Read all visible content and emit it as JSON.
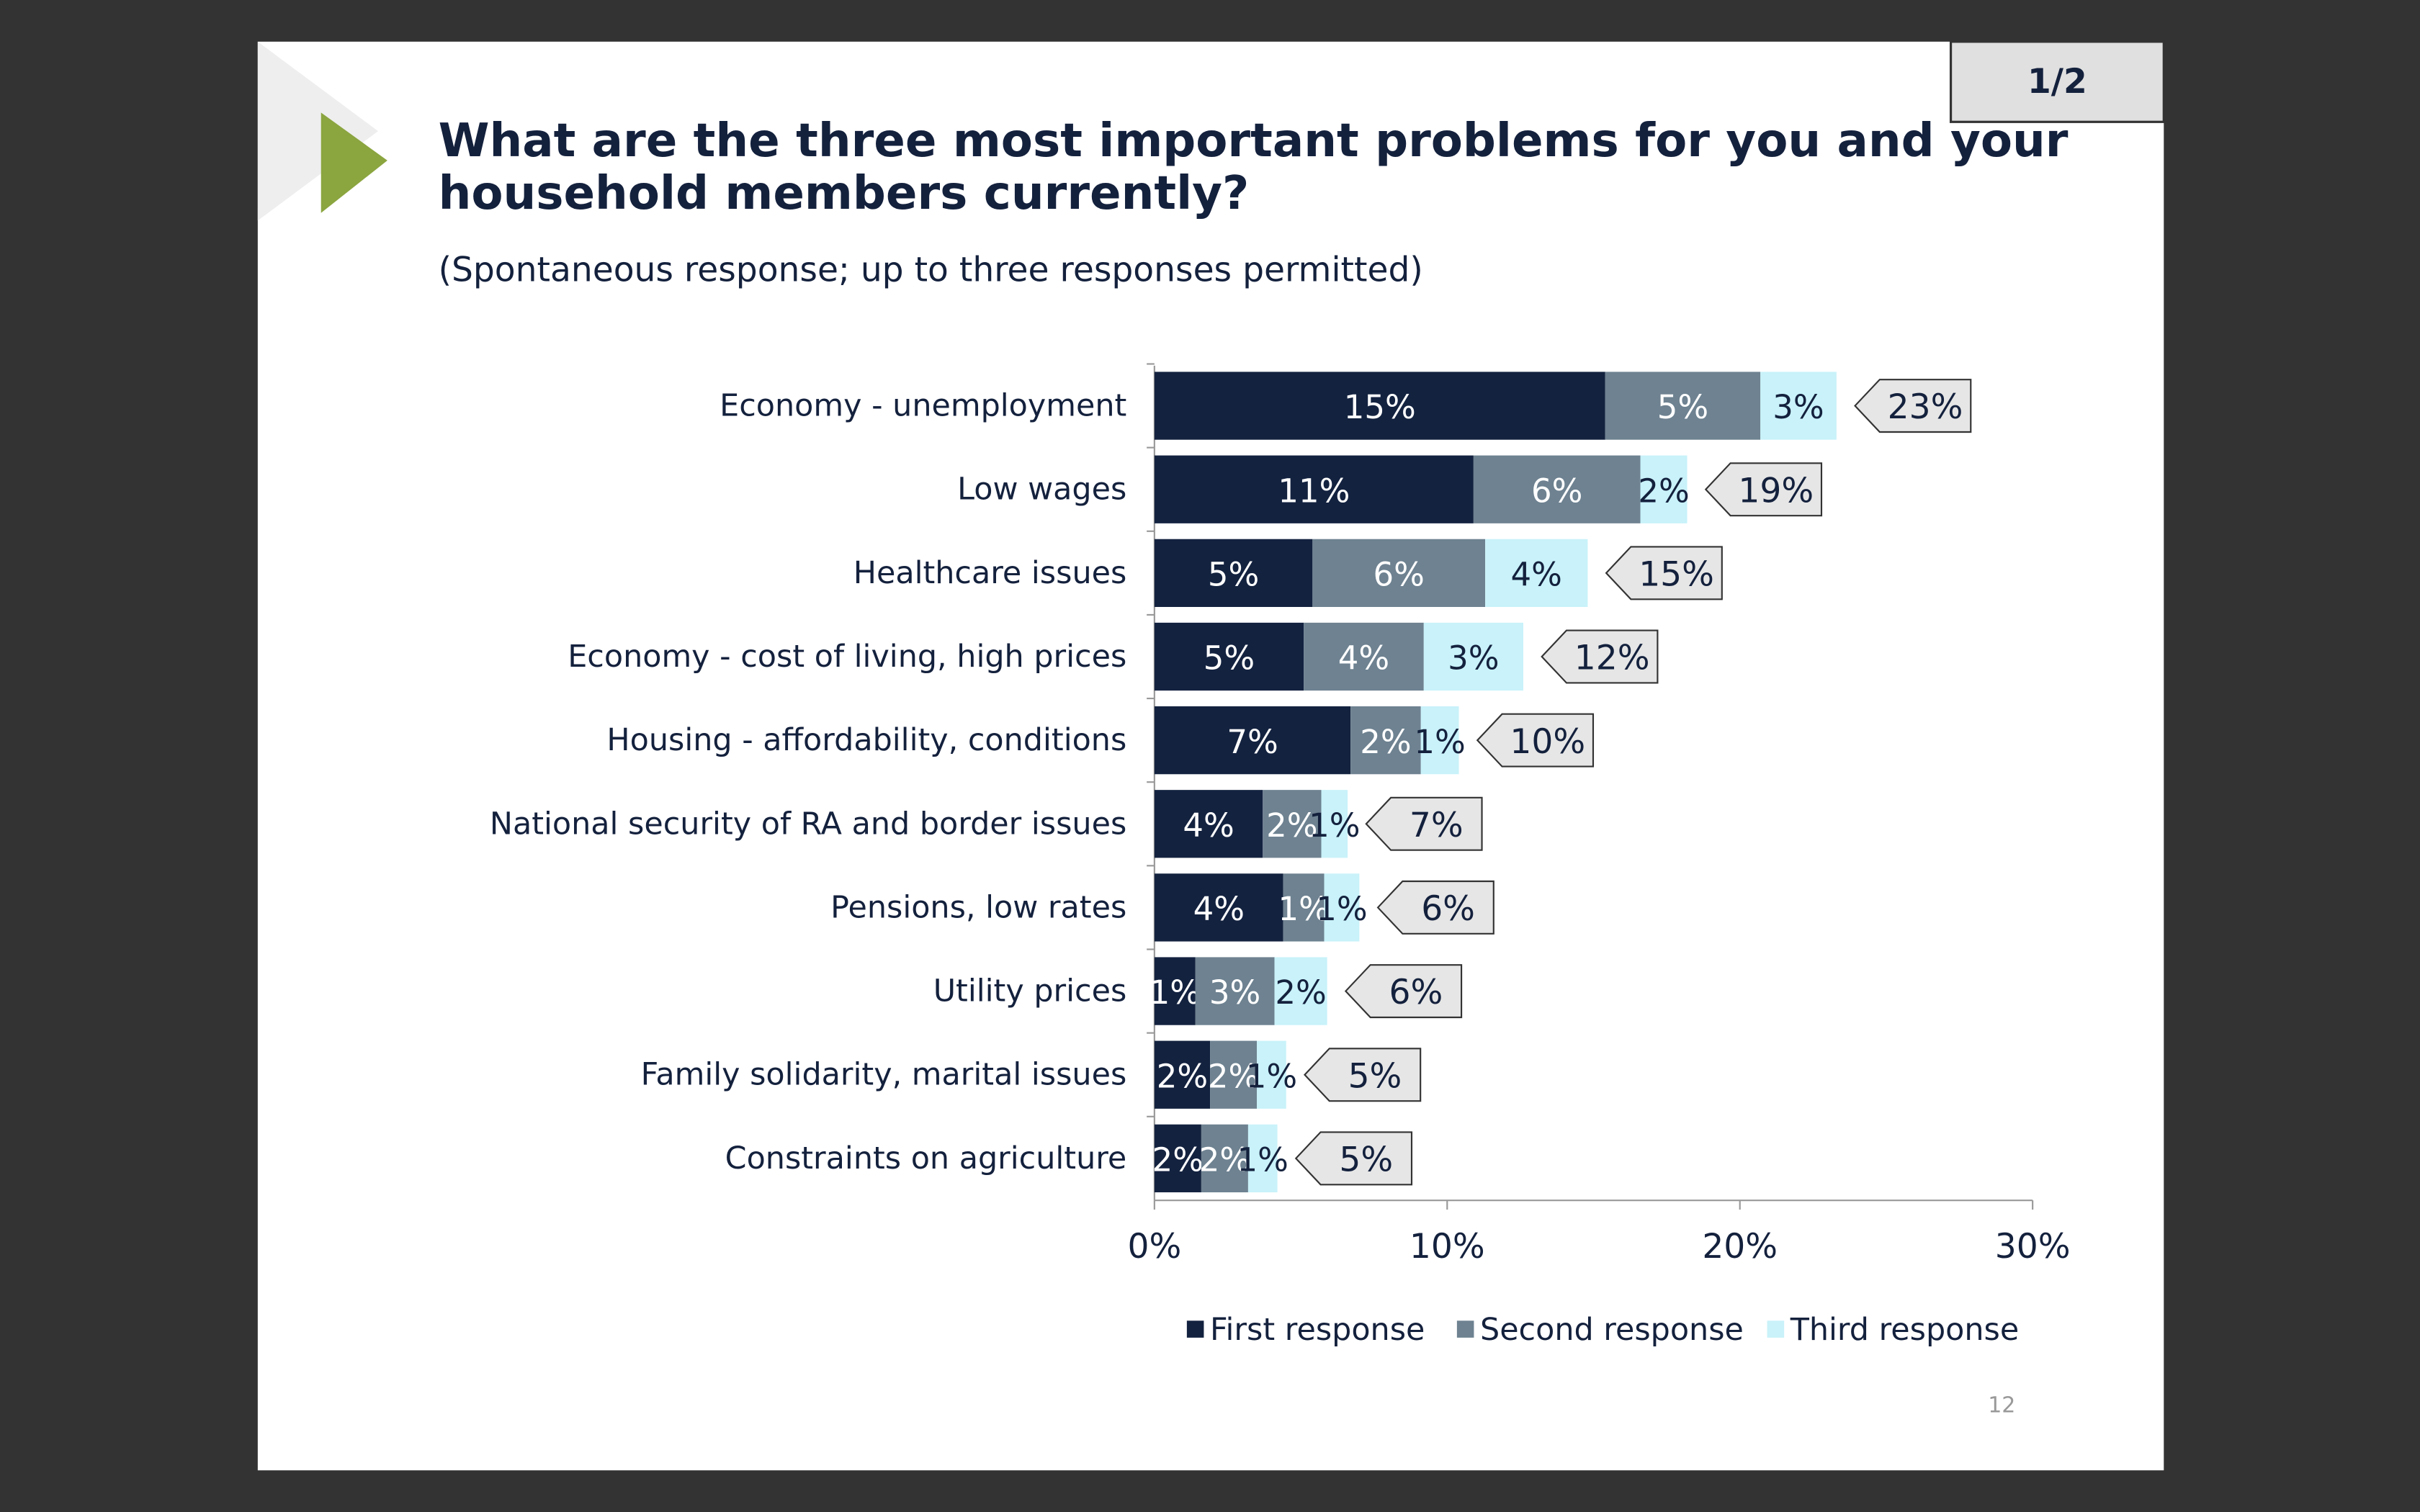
{
  "header": {
    "page": "1/2"
  },
  "footer": {
    "slide_number": "12"
  },
  "chart_data": {
    "type": "stacked-bar-horizontal",
    "title": "What are the three most important problems for you and your household members currently?",
    "subtitle": "(Spontaneous response; up to three responses permitted)",
    "categories": [
      "Economy - unemployment",
      "Low wages",
      "Healthcare issues",
      "Economy - cost of living, high prices",
      "Housing - affordability, conditions",
      "National security of RA and border issues",
      "Pensions, low rates",
      "Utility prices",
      "Family solidarity, marital issues",
      "Constraints on agriculture"
    ],
    "series": [
      {
        "name": "First response",
        "color": "#13223f",
        "values": [
          15.4,
          10.9,
          5.4,
          5.1,
          6.7,
          3.7,
          4.4,
          1.4,
          1.9,
          1.6
        ],
        "value_labels": [
          "15%",
          "11%",
          "5%",
          "5%",
          "7%",
          "4%",
          "4%",
          "1%",
          "2%",
          "2%"
        ]
      },
      {
        "name": "Second response",
        "color": "#6e8291",
        "values": [
          5.3,
          5.7,
          5.9,
          4.1,
          2.4,
          2.0,
          1.4,
          2.7,
          1.6,
          1.6
        ],
        "value_labels": [
          "5%",
          "6%",
          "6%",
          "4%",
          "2%",
          "2%",
          "1%",
          "3%",
          "2%",
          "2%"
        ]
      },
      {
        "name": "Third response",
        "color": "#c9f2fa",
        "values": [
          2.6,
          1.6,
          3.5,
          3.4,
          1.3,
          0.9,
          1.2,
          1.8,
          1.0,
          1.0
        ],
        "value_labels": [
          "3%",
          "2%",
          "4%",
          "3%",
          "1%",
          "1%",
          "1%",
          "2%",
          "1%",
          "1%"
        ]
      }
    ],
    "totals": {
      "values": [
        23,
        19,
        15,
        12,
        10,
        7,
        6,
        6,
        5,
        5
      ],
      "value_labels": [
        "23%",
        "19%",
        "15%",
        "12%",
        "10%",
        "7%",
        "6%",
        "6%",
        "5%",
        "5%"
      ]
    },
    "xlim": [
      0,
      30
    ],
    "xticks": [
      {
        "value": 0,
        "label": "0%"
      },
      {
        "value": 10,
        "label": "10%"
      },
      {
        "value": 20,
        "label": "20%"
      },
      {
        "value": 30,
        "label": "30%"
      }
    ],
    "legend": "bottom"
  }
}
